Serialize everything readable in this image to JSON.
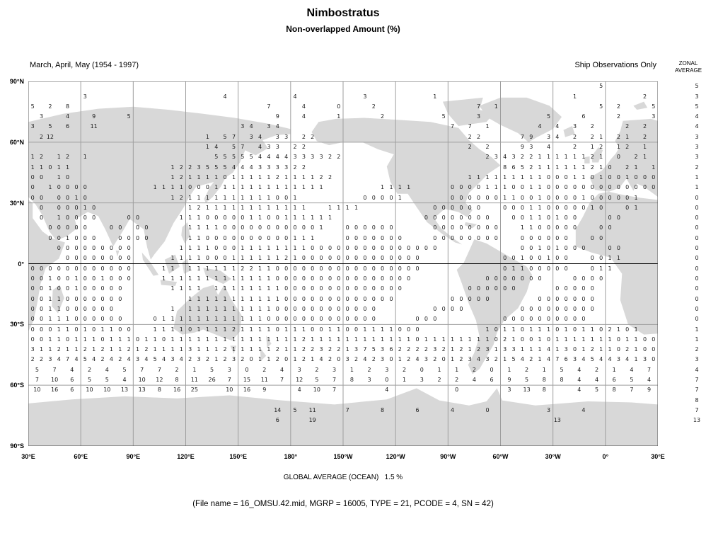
{
  "title": "Nimbostratus",
  "subtitle": "Non-overlapped Amount (%)",
  "header": {
    "left": "March, April, May (1954 - 1997)",
    "right": "Ship Observations Only",
    "zonal_line1": "ZONAL",
    "zonal_line2": "AVERAGE"
  },
  "footer": {
    "global_average": "GLOBAL AVERAGE (OCEAN)   1.5 %",
    "file_info": "(File name = 16_OMSU.42.mid, MGRP = 16005, TYPE = 21, PCODE = 4, SN = 42)"
  },
  "axes": {
    "lat_labels": [
      "90°N",
      "60°N",
      "30°N",
      "0°",
      "30°S",
      "60°S",
      "90°S"
    ],
    "lon_labels": [
      "30°E",
      "60°E",
      "90°E",
      "120°E",
      "150°E",
      "180°",
      "150°W",
      "120°W",
      "90°W",
      "60°W",
      "30°W",
      "0°",
      "30°E"
    ]
  },
  "chart_data": {
    "type": "heatmap",
    "title": "Nimbostratus — Non-overlapped Amount (%)",
    "season": "March, April, May (1954 - 1997)",
    "source": "Ship Observations Only",
    "units": "percent",
    "global_average_ocean_pct": 1.5,
    "grid": {
      "cols": 72,
      "lat_rows": 36,
      "cell_deg": 5,
      "lon_start": "30E",
      "note": "rows_data: r = 5-deg latitude band index from 90N; seg = [startCol, space-separated values, '.' = empty cell]; step = column stride (2 = 10-deg cells)",
      "rows_data": [
        {
          "r": 0,
          "seg": [
            [
              65,
              "5"
            ]
          ]
        },
        {
          "r": 1,
          "seg": [
            [
              6,
              "3"
            ],
            [
              22,
              "4"
            ],
            [
              30,
              "4"
            ],
            [
              38,
              "3"
            ],
            [
              46,
              "1"
            ],
            [
              62,
              "1"
            ],
            [
              70,
              "2"
            ]
          ]
        },
        {
          "r": 2,
          "seg": [
            [
              0,
              "5 . 2 . 8"
            ],
            [
              27,
              "7 . . . 4"
            ],
            [
              35,
              "0 . . . 2"
            ],
            [
              51,
              "7 . 1"
            ],
            [
              65,
              "5 . 2"
            ],
            [
              71,
              "5"
            ]
          ]
        },
        {
          "r": 3,
          "seg": [
            [
              1,
              "3 . . 4 . . 9"
            ],
            [
              11,
              "5"
            ],
            [
              28,
              "9 . . 4"
            ],
            [
              35,
              "1 . . . . 2"
            ],
            [
              47,
              "5 . . . 3"
            ],
            [
              59,
              "5 . . . 6"
            ],
            [
              67,
              "2 . . . 3"
            ]
          ]
        },
        {
          "r": 4,
          "seg": [
            [
              0,
              "3 . 5 . 6 . . 11"
            ],
            [
              24,
              "3 4 . 3 4"
            ],
            [
              48,
              "7 . 7 . 1"
            ],
            [
              58,
              "4 . 4 . 3 . 2"
            ],
            [
              68,
              "2 . 2"
            ]
          ]
        },
        {
          "r": 5,
          "seg": [
            [
              1,
              "2 12"
            ],
            [
              20,
              "1 . 5 7 . 3 4 . 3 3 . 2 2"
            ],
            [
              50,
              "2 2"
            ],
            [
              56,
              "7 9 . 3 4"
            ],
            [
              62,
              "2 . 2 1 . 2 1 . 2"
            ]
          ]
        },
        {
          "r": 6,
          "seg": [
            [
              20,
              "1 4 . 5 7 . 4 3 3 . 2 2"
            ],
            [
              50,
              "2 . 2"
            ],
            [
              56,
              "9 3 . 4"
            ],
            [
              62,
              "2 . 1 2 . 1 2 . 1"
            ]
          ]
        },
        {
          "r": 7,
          "seg": [
            [
              0,
              "1 2 . 1 2 . 1"
            ],
            [
              21,
              "5 5 5 5 5 4 4 4 4 3 3 3 3 2 2"
            ],
            [
              52,
              "2 3 4 3 2 2 1 1 1 1 1 1 2 1"
            ],
            [
              67,
              "0 . 2 1"
            ]
          ]
        },
        {
          "r": 8,
          "seg": [
            [
              0,
              "1 1 0 1 1"
            ],
            [
              16,
              "1 2 2 3 5 5 5 4 4 4 3 3 3 3 2 2"
            ],
            [
              54,
              "8 6 5 2 1 1 1 1 1 1 2 1"
            ],
            [
              66,
              "0 . 2 1 . 1"
            ]
          ]
        },
        {
          "r": 9,
          "seg": [
            [
              0,
              "0 0 . 1 0"
            ],
            [
              16,
              "1 2 1 1 1 1 0 1 1 1 1 1 2 1 1 1 1 2 2"
            ],
            [
              50,
              "1 1 1 1 1 1 1 1 1 0 0 0 1 1 0 1 0 0 1 0 0 0"
            ]
          ]
        },
        {
          "r": 10,
          "seg": [
            [
              0,
              "0 . 1 0 0 0 0"
            ],
            [
              14,
              "1 1 1 1 0 0 0 1 1 1 1 1 1 1 1 1 1 1 1 1"
            ],
            [
              40,
              "1 1 1 1"
            ],
            [
              48,
              "0 0 0 0 1 1 1 0 0 1 1 0 0 0 0 0 0 0 0 0 0 0 0 0"
            ]
          ]
        },
        {
          "r": 11,
          "seg": [
            [
              0,
              "0 0 . 0 0 1 0"
            ],
            [
              16,
              "1 2 1 1 1 1 1 1 1 1 1 1 0 0 1"
            ],
            [
              38,
              "0 0 0 0 1"
            ],
            [
              48,
              "0 0 0 0 0 0 1 1 0 0 1 0 0 0 0 1 0 0 0 0 0 1"
            ]
          ]
        },
        {
          "r": 12,
          "seg": [
            [
              1,
              "0 . 0 0 0 1 0"
            ],
            [
              18,
              "1 2 1 1 1 1 1 1 1 1 1 1 1 1"
            ],
            [
              34,
              "1 1 1 1"
            ],
            [
              46,
              "0 0 0 0 0 0"
            ],
            [
              54,
              "0 0 0 1 1 0 0 0 0 0 1 0"
            ],
            [
              68,
              "0 1"
            ]
          ]
        },
        {
          "r": 13,
          "seg": [
            [
              1,
              "0 . 1 0 0 0 0"
            ],
            [
              11,
              "0 0"
            ],
            [
              17,
              "1 1 1 0 0 0 0 0 1 1 0 0 1 1 1 1 1 1"
            ],
            [
              45,
              "0 0 0 0 0 0 0 0"
            ],
            [
              55,
              "0 0 1 1 0 1 0 0"
            ],
            [
              66,
              "0 0"
            ]
          ]
        },
        {
          "r": 14,
          "seg": [
            [
              2,
              "0 0 0 0 0"
            ],
            [
              9,
              "0 0 . 0 0"
            ],
            [
              18,
              "1 1 1 1 0 0 0 0 0 0 0 0 0 0 0 1"
            ],
            [
              36,
              "0 0 0 0 0 0"
            ],
            [
              46,
              "0 0 0 0 0 0 0 0"
            ],
            [
              56,
              "1 1 0 0 0 0 0"
            ],
            [
              65,
              "0 0"
            ]
          ]
        },
        {
          "r": 15,
          "seg": [
            [
              2,
              "0 0 1 0 0 0"
            ],
            [
              10,
              "0 0 0 0"
            ],
            [
              18,
              "1 1 0 0 0 0 0 0 0 0 0 0 1 1 1"
            ],
            [
              36,
              "0 0 0 0 0 0 0"
            ],
            [
              46,
              "0 0 0 0 0 0 0 0"
            ],
            [
              56,
              "0 0 0 0 0 0"
            ],
            [
              64,
              "0 0"
            ]
          ]
        },
        {
          "r": 16,
          "seg": [
            [
              3,
              "0 0 0 0 0 0 0 0 0"
            ],
            [
              17,
              "1 1 1 1 0 0 0 1 1 1 1 1 1 1 1 0 0 0 0 0 0 0 0 0 0 0 0 0 0 0"
            ],
            [
              56,
              "0 0 1 0 1 0 0 0"
            ],
            [
              66,
              "0 0"
            ]
          ]
        },
        {
          "r": 17,
          "seg": [
            [
              4,
              "0 0 0 0 0 0 0 0"
            ],
            [
              16,
              "1 1 1 1 0 0 0 1 1 1 1 1 1 2 1 0 0 0 0 0 0 0 0 0 0 0 0 0 0"
            ],
            [
              54,
              "0 0 1 0 0 1 0 0"
            ],
            [
              64,
              "0 0 1 1"
            ]
          ]
        },
        {
          "r": 18,
          "seg": [
            [
              0,
              "0 0 0 0 0 0 0 0 0 0 0 0"
            ],
            [
              15,
              "1 1 . 1 1 1 1 1 1 2 2 1 1 0 0 0 0 0 0 0 0 0 0 0 0 0 0 0 0 0"
            ],
            [
              54,
              "0 1 1 0 0 0 0 0"
            ],
            [
              64,
              "0 1 1"
            ]
          ]
        },
        {
          "r": 19,
          "seg": [
            [
              0,
              "0 0 1 0 0 1 0 0 1 0 0 0"
            ],
            [
              15,
              "1 1 1 1 1 1 1 1 1 1 1 1 1 0 0 0 0 0 0 0 0 0 0 0 0 0 0 0 0"
            ],
            [
              52,
              "0 0 0 0 0 0 0"
            ],
            [
              62,
              "0 0 0 0"
            ]
          ]
        },
        {
          "r": 20,
          "seg": [
            [
              0,
              "0 0 1 0 0 1 0 0 0 0 0"
            ],
            [
              16,
              "1 1 1 1 . 1 1 1 1 1 1 1 1 0 0 0 0 0 0 0 0 0 0 0 0 0 0"
            ],
            [
              50,
              "0 0 0 0 0 0"
            ],
            [
              60,
              "0 0 0 0 0"
            ]
          ]
        },
        {
          "r": 21,
          "seg": [
            [
              0,
              "0 0 1 1 0 0 0 0 0 0 0"
            ],
            [
              18,
              "1 1 1 1 1 1 1 1 1 1 1 0 0 0 0 0 0 0 0 0 0 0 0 0"
            ],
            [
              48,
              "0 0 0 0 0"
            ],
            [
              58,
              "0 0 0 0 0 0 0"
            ]
          ]
        },
        {
          "r": 22,
          "seg": [
            [
              0,
              "0 0 1 1 0 0 0 0 0 0"
            ],
            [
              16,
              "1 . 1 1 1 1 1 1 1 1 1 1 0 0 0 0 0 0 0 0 0 0 0 0"
            ],
            [
              46,
              "0 0 0 0"
            ],
            [
              56,
              "0 0 0 0 0 0 0 0 0"
            ]
          ]
        },
        {
          "r": 23,
          "seg": [
            [
              0,
              "0 0 1 1 1 0 0 0 0 0 0"
            ],
            [
              14,
              "0 1 1 1 1 1 1 1 1 1 1 1 1 0 0 0 0 0 0 0 0 0 0 0 0 0"
            ],
            [
              44,
              "0 0 0"
            ],
            [
              54,
              "0 0 0 0 0 0 0 0 0 0"
            ]
          ]
        },
        {
          "r": 24,
          "seg": [
            [
              0,
              "0 0 0 1 1 0 1 0 1 1 0 0"
            ],
            [
              14,
              "1 1 1 1 0 1 1 1 1 2 1 1 1 1 0 1 1 1 0 0 1 1 0 0 1 1 1 1 0 0 0"
            ],
            [
              52,
              "1 0 1 1 0 1 1 1 0 1 0 1 1 0 2 1 0 1"
            ]
          ]
        },
        {
          "r": 25,
          "seg": [
            [
              0,
              "0 0 1 1 0 1 1 1 0 1 1 1 0 1 1 0 1 1 1 1 1 1 1 1 1 1 1 1 1 1 1 2 1 1 1 1 1 1 1 1 1 1 1 1 0 1 1 1 1 1 1 1 1 0 2 1 0 0 1 0 1 1 1 1 1 1 1 0 1 1 0 0"
            ]
          ]
        },
        {
          "r": 26,
          "seg": [
            [
              0,
              "3 1 1 2 1 1 2 1 2 1 1 2 1 2 1 1 1 1 3 1 1 1 2 1 1 1 1 1 2 1 1 2 2 3 2 2 1 3 7 5 3 6 2 2 2 2 3 2 1 2 1 2 3 1 3 3 1 1 1 4 1 3 0 1 2 1 1 0 2 1 0 0"
            ]
          ]
        },
        {
          "r": 27,
          "seg": [
            [
              0,
              "2 2 3 4 7 4 5 4 2 4 2 4 3 4 5 4 3 4 2 3 2 1 2 3 2 0 1 1 2 0 1 2 1 4 2 0 3 2 4 2 3 0 1 2 4 3 2 0 1 2 3 4 3 2 1 5 4 2 1 4 7 6 3 4 5 4 4 3 4 1 3 0"
            ]
          ]
        },
        {
          "r": 28,
          "step": 2,
          "seg": [
            [
              0,
              "5 7 4 2 4 5 7 7 2 1 5 3 0 2 4 3 2 3 1 2 3 2 0 1 1 2 0 1 2 1 5 4 2 1 4 7"
            ]
          ]
        },
        {
          "r": 29,
          "step": 2,
          "seg": [
            [
              0,
              "7 10 6 5 5 4 10 12 8 11 26 7 15 11 7 12 5 7 8 3 0 1 3 2 2 4 6 9 5 8 8 4 4 6 5 4"
            ]
          ]
        },
        {
          "r": 30,
          "step": 2,
          "seg": [
            [
              0,
              "10 16 6 10 10 13 13 8"
            ],
            [
              16,
              "16 25"
            ],
            [
              22,
              "10 16 9"
            ],
            [
              30,
              "4 10 7"
            ],
            [
              40,
              "4"
            ],
            [
              48,
              "0"
            ],
            [
              54,
              "3 13 8"
            ],
            [
              62,
              "4 5 8"
            ],
            [
              68,
              "7 9"
            ]
          ]
        },
        {
          "r": 32,
          "seg": [
            [
              28,
              "14"
            ],
            [
              30,
              "5 . 11"
            ],
            [
              36,
              "7"
            ],
            [
              40,
              "8"
            ],
            [
              44,
              "6"
            ],
            [
              48,
              "4"
            ],
            [
              52,
              "0"
            ],
            [
              59,
              "3"
            ],
            [
              63,
              "4"
            ]
          ]
        },
        {
          "r": 33,
          "seg": [
            [
              28,
              "6"
            ],
            [
              32,
              "19"
            ],
            [
              60,
              "13"
            ]
          ]
        }
      ]
    },
    "zonal_average": [
      "5",
      "3",
      "5",
      "4",
      "4",
      "3",
      "3",
      "3",
      "2",
      "1",
      "1",
      "0",
      "0",
      "0",
      "0",
      "0",
      "0",
      "0",
      "0",
      "0",
      "0",
      "0",
      "0",
      "0",
      "1",
      "1",
      "2",
      "3",
      "4",
      "7",
      "7",
      "8",
      "7",
      "13"
    ]
  }
}
